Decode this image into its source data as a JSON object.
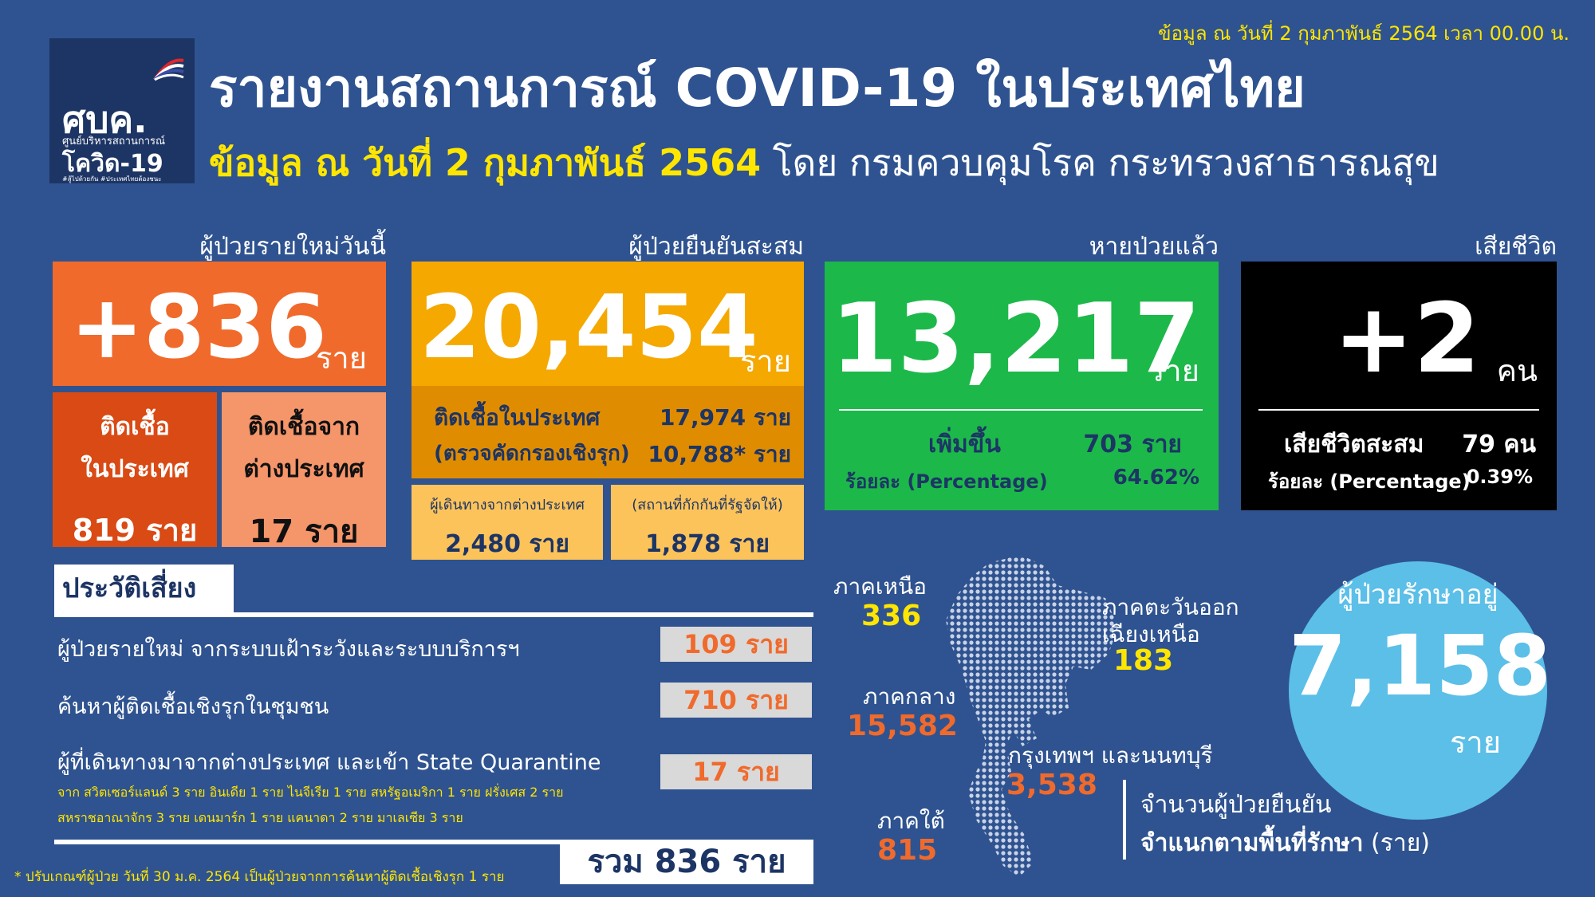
{
  "update_line": "ข้อมูล ณ วันที่ 2 กุมภาพันธ์ 2564 เวลา 00.00 น.",
  "logo": {
    "line1": "ศบค.",
    "line2": "ศูนย์บริหารสถานการณ์",
    "line3": "โควิด-19",
    "line4": "#สู้ไปด้วยกัน #ประเทศไทยต้องชนะ"
  },
  "title": "รายงานสถานการณ์ COVID-19 ในประเทศไทย",
  "subtitle_bold": "ข้อมูล ณ วันที่ 2 กุมภาพันธ์ 2564",
  "subtitle_rest": " โดย กรมควบคุมโรค กระทรวงสาธารณสุข",
  "new_cases": {
    "label": "ผู้ป่วยรายใหม่วันนี้",
    "value": "+836",
    "unit": "ราย",
    "domestic_label_1": "ติดเชื้อ",
    "domestic_label_2": "ในประเทศ",
    "domestic_value": "819 ราย",
    "imported_label_1": "ติดเชื้อจาก",
    "imported_label_2": "ต่างประเทศ",
    "imported_value": "17 ราย"
  },
  "cumulative": {
    "label": "ผู้ป่วยยืนยันสะสม",
    "value": "20,454",
    "unit": "ราย",
    "domestic_label": "ติดเชื้อในประเทศ",
    "domestic_value": "17,974 ราย",
    "active_label": "(ตรวจคัดกรองเชิงรุก)",
    "active_value": "10,788* ราย",
    "travelers_label": "ผู้เดินทางจากต่างประเทศ",
    "travelers_value": "2,480 ราย",
    "quarantine_label": "(สถานที่กักกันที่รัฐจัดให้)",
    "quarantine_value": "1,878 ราย"
  },
  "recovered": {
    "label": "หายป่วยแล้ว",
    "value": "13,217",
    "unit": "ราย",
    "increase_label": "เพิ่มขึ้น",
    "increase_value": "703 ราย",
    "percent_label": "ร้อยละ (Percentage)",
    "percent_value": "64.62%"
  },
  "deaths": {
    "label": "เสียชีวิต",
    "value": "+2",
    "unit": "คน",
    "cumulative_label": "เสียชีวิตสะสม",
    "cumulative_value": "79 คน",
    "percent_label": "ร้อยละ (Percentage)",
    "percent_value": "0.39%"
  },
  "risk": {
    "title": "ประวัติเสี่ยง",
    "rows": [
      {
        "label": "ผู้ป่วยรายใหม่ จากระบบเฝ้าระวังและระบบบริการฯ",
        "value": "109 ราย"
      },
      {
        "label": "ค้นหาผู้ติดเชื้อเชิงรุกในชุมชน",
        "value": "710 ราย"
      },
      {
        "label": "ผู้ที่เดินทางมาจากต่างประเทศ และเข้า State Quarantine",
        "value": "17 ราย"
      }
    ],
    "note_1": "จาก สวิตเซอร์แลนด์ 3 ราย อินเดีย 1 ราย ไนจีเรีย 1 ราย สหรัฐอเมริกา 1 ราย ฝรั่งเศส 2 ราย",
    "note_2": "สหราชอาณาจักร 3 ราย เดนมาร์ก 1 ราย แคนาดา 2 ราย มาเลเซีย 3 ราย",
    "total": "รวม 836 ราย"
  },
  "footnote": "* ปรับเกณฑ์ผู้ป่วย วันที่ 30 ม.ค. 2564 เป็นผู้ป่วยจากการค้นหาผู้ติดเชื้อเชิงรุก 1 ราย",
  "regions": {
    "north": {
      "name": "ภาคเหนือ",
      "value": "336"
    },
    "northeast": {
      "name_1": "ภาคตะวันออก",
      "name_2": "เฉียงเหนือ",
      "value": "183"
    },
    "central": {
      "name": "ภาคกลาง",
      "value": "15,582"
    },
    "bangkok": {
      "name": "กรุงเทพฯ และนนทบุรี",
      "value": "3,538"
    },
    "south": {
      "name": "ภาคใต้",
      "value": "815"
    }
  },
  "map_caption_1": "จำนวนผู้ป่วยยืนยัน",
  "map_caption_2": "จำแนกตามพื้นที่รักษา",
  "map_caption_3": " (ราย)",
  "in_treatment": {
    "label": "ผู้ป่วยรักษาอยู่",
    "value": "7,158",
    "unit": "ราย"
  },
  "colors": {
    "background": "#2f5390",
    "new_cases": "#f06a2c",
    "domestic": "#d94a14",
    "imported": "#f5956a",
    "cumulative": "#f5a800",
    "cumulative_dark": "#e08c00",
    "cumulative_light": "#fcc35a",
    "recovered": "#1db84a",
    "deaths": "#000000",
    "highlight_yellow": "#ffe600",
    "region_orange": "#f06a2c",
    "circle": "#5bbfe8"
  },
  "icons": [
    "thai-flag-icon",
    "thailand-map-icon"
  ]
}
